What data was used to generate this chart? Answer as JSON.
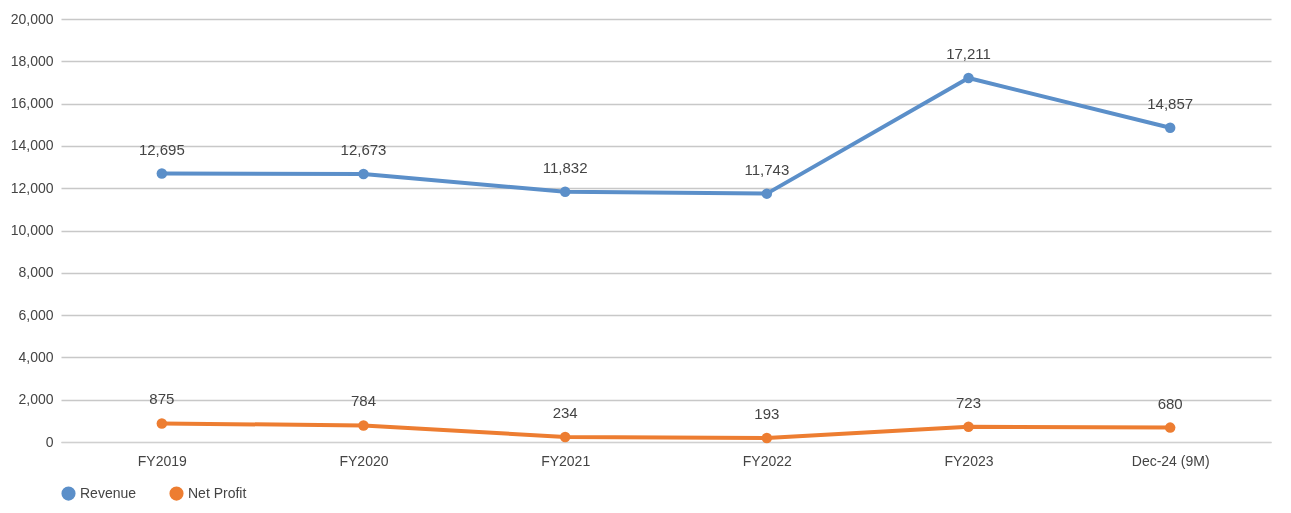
{
  "chart_data": {
    "type": "line",
    "categories": [
      "FY2019",
      "FY2020",
      "FY2021",
      "FY2022",
      "FY2023",
      "Dec-24 (9M)"
    ],
    "series": [
      {
        "name": "Revenue",
        "color": "#5b8fc9",
        "values": [
          12695,
          12673,
          11832,
          11743,
          17211,
          14857
        ],
        "value_labels": [
          "12,695",
          "12,673",
          "11,832",
          "11,743",
          "17,211",
          "14,857"
        ]
      },
      {
        "name": "Net Profit",
        "color": "#ed7d31",
        "values": [
          875,
          784,
          234,
          193,
          723,
          680
        ],
        "value_labels": [
          "875",
          "784",
          "234",
          "193",
          "723",
          "680"
        ]
      }
    ],
    "ylim": [
      0,
      20000
    ],
    "yticks": [
      0,
      {
        "value": 2000,
        "label": "2,000"
      },
      {
        "value": 4000,
        "label": "4,000"
      },
      {
        "value": 6000,
        "label": "6,000"
      },
      {
        "value": 8000,
        "label": "8,000"
      },
      {
        "value": 10000,
        "label": "10,000"
      },
      {
        "value": 12000,
        "label": "12,000"
      },
      {
        "value": 14000,
        "label": "14,000"
      },
      {
        "value": 16000,
        "label": "16,000"
      },
      {
        "value": 18000,
        "label": "18,000"
      },
      {
        "value": 20000,
        "label": "20,000"
      }
    ],
    "grid": "y",
    "legend": "bottom",
    "marker": "circle",
    "line_style": "solid"
  }
}
